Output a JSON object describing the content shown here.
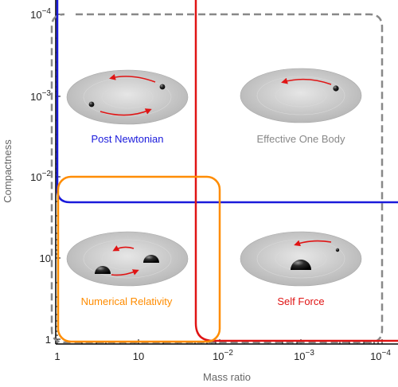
{
  "axes": {
    "xlabel": "Mass ratio",
    "ylabel": "Compactness",
    "x_ticks": [
      {
        "base": "1",
        "exp": ""
      },
      {
        "base": "10",
        "exp": ""
      },
      {
        "base": "10",
        "exp": "−2"
      },
      {
        "base": "10",
        "exp": "−3"
      },
      {
        "base": "10",
        "exp": "−4"
      }
    ],
    "y_ticks": [
      {
        "base": "10",
        "exp": "−4"
      },
      {
        "base": "10",
        "exp": "−3"
      },
      {
        "base": "10",
        "exp": "−2"
      },
      {
        "base": "10",
        "exp": ""
      },
      {
        "base": "1",
        "exp": ""
      }
    ]
  },
  "regions": [
    {
      "id": "post-newtonian",
      "label": "Post Newtonian",
      "color": "#1a1adb",
      "bodies": "two small"
    },
    {
      "id": "effective-one-body",
      "label": "Effective One Body",
      "color": "#888888",
      "bodies": "one small"
    },
    {
      "id": "numerical-relativity",
      "label": "Numerical Relativity",
      "color": "#ff8c00",
      "bodies": "two large"
    },
    {
      "id": "self-force",
      "label": "Self Force",
      "color": "#e01414",
      "bodies": "one large, one small"
    }
  ],
  "colors": {
    "axis": "#000000",
    "disk": "#c8c8c8",
    "orbit_arrow": "#e01414"
  }
}
